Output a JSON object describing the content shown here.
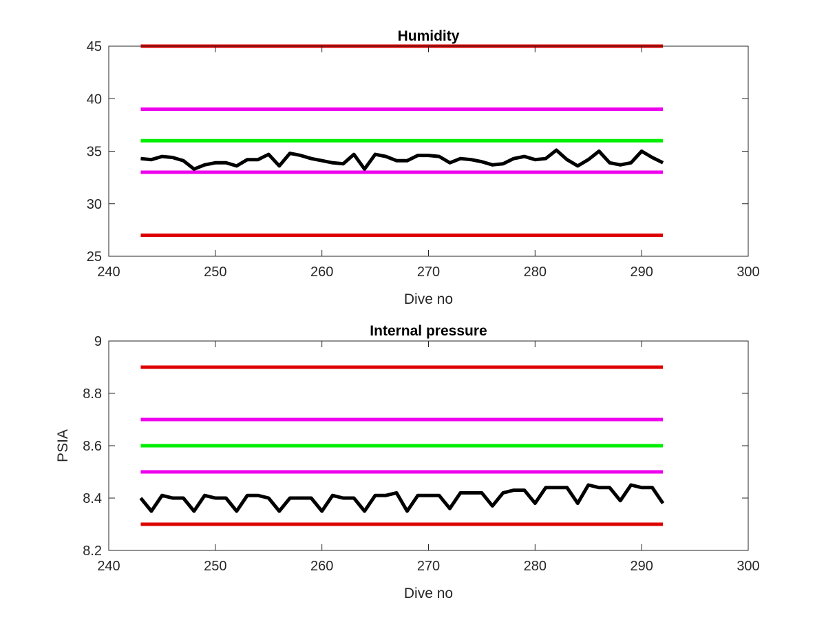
{
  "chart_data": [
    {
      "type": "line",
      "title": "Humidity",
      "xlabel": "Dive no",
      "ylabel": "",
      "xlim": [
        240,
        300
      ],
      "ylim": [
        25,
        45
      ],
      "xticks": [
        240,
        250,
        260,
        270,
        280,
        290,
        300
      ],
      "yticks": [
        25,
        30,
        35,
        40,
        45
      ],
      "xtick_labels": [
        "240",
        "250",
        "260",
        "270",
        "280",
        "290",
        "300"
      ],
      "ytick_labels": [
        "25",
        "30",
        "35",
        "40",
        "45"
      ],
      "grid": false,
      "limit_lines": [
        {
          "y": 45,
          "x": [
            243,
            292
          ],
          "color": "#dd0000"
        },
        {
          "y": 39,
          "x": [
            243,
            292
          ],
          "color": "#ee00ee"
        },
        {
          "y": 36,
          "x": [
            243,
            292
          ],
          "color": "#00ee00"
        },
        {
          "y": 33,
          "x": [
            243,
            292
          ],
          "color": "#ee00ee"
        },
        {
          "y": 27,
          "x": [
            243,
            292
          ],
          "color": "#dd0000"
        }
      ],
      "series": [
        {
          "color": "#000000",
          "x": [
            243,
            244,
            245,
            246,
            247,
            248,
            249,
            250,
            251,
            252,
            253,
            254,
            255,
            256,
            257,
            258,
            259,
            260,
            261,
            262,
            263,
            264,
            265,
            266,
            267,
            268,
            269,
            270,
            271,
            272,
            273,
            274,
            275,
            276,
            277,
            278,
            279,
            280,
            281,
            282,
            283,
            284,
            285,
            286,
            287,
            288,
            289,
            290,
            291,
            292
          ],
          "y": [
            34.3,
            34.2,
            34.5,
            34.4,
            34.1,
            33.3,
            33.7,
            33.9,
            33.9,
            33.6,
            34.2,
            34.2,
            34.7,
            33.6,
            34.8,
            34.6,
            34.3,
            34.1,
            33.9,
            33.8,
            34.7,
            33.3,
            34.7,
            34.5,
            34.1,
            34.1,
            34.6,
            34.6,
            34.5,
            33.9,
            34.3,
            34.2,
            34.0,
            33.7,
            33.8,
            34.3,
            34.5,
            34.2,
            34.3,
            35.1,
            34.2,
            33.6,
            34.2,
            35.0,
            33.9,
            33.7,
            33.9,
            35.0,
            34.4,
            33.9
          ]
        }
      ]
    },
    {
      "type": "line",
      "title": "Internal pressure",
      "xlabel": "Dive no",
      "ylabel": "PSIA",
      "xlim": [
        240,
        300
      ],
      "ylim": [
        8.2,
        9.0
      ],
      "xticks": [
        240,
        250,
        260,
        270,
        280,
        290,
        300
      ],
      "yticks": [
        8.2,
        8.4,
        8.6,
        8.8,
        9.0
      ],
      "xtick_labels": [
        "240",
        "250",
        "260",
        "270",
        "280",
        "290",
        "300"
      ],
      "ytick_labels": [
        "8.2",
        "8.4",
        "8.6",
        "8.8",
        "9"
      ],
      "grid": false,
      "limit_lines": [
        {
          "y": 8.9,
          "x": [
            243,
            292
          ],
          "color": "#dd0000"
        },
        {
          "y": 8.7,
          "x": [
            243,
            292
          ],
          "color": "#ee00ee"
        },
        {
          "y": 8.6,
          "x": [
            243,
            292
          ],
          "color": "#00ee00"
        },
        {
          "y": 8.5,
          "x": [
            243,
            292
          ],
          "color": "#ee00ee"
        },
        {
          "y": 8.3,
          "x": [
            243,
            292
          ],
          "color": "#dd0000"
        }
      ],
      "series": [
        {
          "color": "#000000",
          "x": [
            243,
            244,
            245,
            246,
            247,
            248,
            249,
            250,
            251,
            252,
            253,
            254,
            255,
            256,
            257,
            258,
            259,
            260,
            261,
            262,
            263,
            264,
            265,
            266,
            267,
            268,
            269,
            270,
            271,
            272,
            273,
            274,
            275,
            276,
            277,
            278,
            279,
            280,
            281,
            282,
            283,
            284,
            285,
            286,
            287,
            288,
            289,
            290,
            291,
            292
          ],
          "y": [
            8.4,
            8.35,
            8.41,
            8.4,
            8.4,
            8.35,
            8.41,
            8.4,
            8.4,
            8.35,
            8.41,
            8.41,
            8.4,
            8.35,
            8.4,
            8.4,
            8.4,
            8.35,
            8.41,
            8.4,
            8.4,
            8.35,
            8.41,
            8.41,
            8.42,
            8.35,
            8.41,
            8.41,
            8.41,
            8.36,
            8.42,
            8.42,
            8.42,
            8.37,
            8.42,
            8.43,
            8.43,
            8.38,
            8.44,
            8.44,
            8.44,
            8.38,
            8.45,
            8.44,
            8.44,
            8.39,
            8.45,
            8.44,
            8.44,
            8.38
          ]
        }
      ]
    }
  ]
}
